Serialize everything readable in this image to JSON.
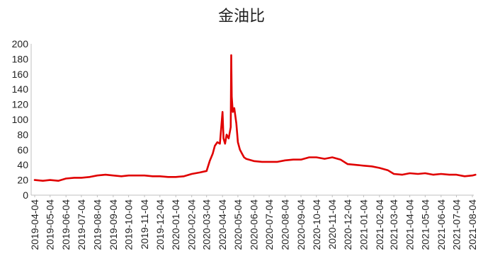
{
  "chart_data": {
    "type": "line",
    "title": "金油比",
    "xlabel": "",
    "ylabel": "",
    "ylim": [
      0,
      200
    ],
    "y_ticks": [
      "0",
      "20",
      "40",
      "60",
      "80",
      "100",
      "120",
      "140",
      "160",
      "180",
      "200"
    ],
    "x_ticks": [
      "2019-04-04",
      "2019-05-04",
      "2019-06-04",
      "2019-07-04",
      "2019-08-04",
      "2019-09-04",
      "2019-10-04",
      "2019-11-04",
      "2019-12-04",
      "2020-01-04",
      "2020-02-04",
      "2020-03-04",
      "2020-04-04",
      "2020-05-04",
      "2020-06-04",
      "2020-07-04",
      "2020-08-04",
      "2020-09-04",
      "2020-10-04",
      "2020-11-04",
      "2020-12-04",
      "2021-01-04",
      "2021-02-04",
      "2021-03-04",
      "2021-04-04",
      "2021-05-04",
      "2021-06-04",
      "2021-07-04",
      "2021-08-04"
    ],
    "grid": false,
    "legend": "none",
    "series": [
      {
        "color": "#e00000",
        "x": [
          "2019-04-04",
          "2019-04-20",
          "2019-05-04",
          "2019-05-20",
          "2019-06-04",
          "2019-06-20",
          "2019-07-04",
          "2019-07-20",
          "2019-08-04",
          "2019-08-20",
          "2019-09-04",
          "2019-09-20",
          "2019-10-04",
          "2019-10-20",
          "2019-11-04",
          "2019-11-20",
          "2019-12-04",
          "2019-12-20",
          "2020-01-04",
          "2020-01-20",
          "2020-02-04",
          "2020-02-20",
          "2020-03-04",
          "2020-03-10",
          "2020-03-16",
          "2020-03-20",
          "2020-03-25",
          "2020-03-30",
          "2020-04-01",
          "2020-04-04",
          "2020-04-06",
          "2020-04-09",
          "2020-04-12",
          "2020-04-16",
          "2020-04-20",
          "2020-04-21",
          "2020-04-22",
          "2020-04-24",
          "2020-04-27",
          "2020-05-01",
          "2020-05-04",
          "2020-05-08",
          "2020-05-12",
          "2020-05-16",
          "2020-05-20",
          "2020-06-04",
          "2020-06-20",
          "2020-07-04",
          "2020-07-20",
          "2020-08-04",
          "2020-08-20",
          "2020-09-04",
          "2020-09-20",
          "2020-10-04",
          "2020-10-20",
          "2020-11-04",
          "2020-11-20",
          "2020-12-04",
          "2020-12-20",
          "2021-01-04",
          "2021-01-20",
          "2021-02-04",
          "2021-02-20",
          "2021-03-04",
          "2021-03-20",
          "2021-04-04",
          "2021-04-20",
          "2021-05-04",
          "2021-05-20",
          "2021-06-04",
          "2021-06-20",
          "2021-07-04",
          "2021-07-20",
          "2021-08-04",
          "2021-08-10"
        ],
        "y": [
          20,
          19,
          20,
          19,
          22,
          23,
          23,
          24,
          26,
          27,
          26,
          25,
          26,
          26,
          26,
          25,
          25,
          24,
          24,
          25,
          28,
          30,
          32,
          45,
          55,
          65,
          70,
          68,
          85,
          110,
          75,
          68,
          80,
          75,
          90,
          185,
          130,
          110,
          115,
          95,
          70,
          60,
          55,
          50,
          48,
          45,
          44,
          44,
          44,
          46,
          47,
          47,
          50,
          50,
          48,
          50,
          47,
          41,
          40,
          39,
          38,
          36,
          33,
          28,
          27,
          29,
          28,
          29,
          27,
          28,
          27,
          27,
          25,
          26,
          27
        ]
      }
    ]
  }
}
